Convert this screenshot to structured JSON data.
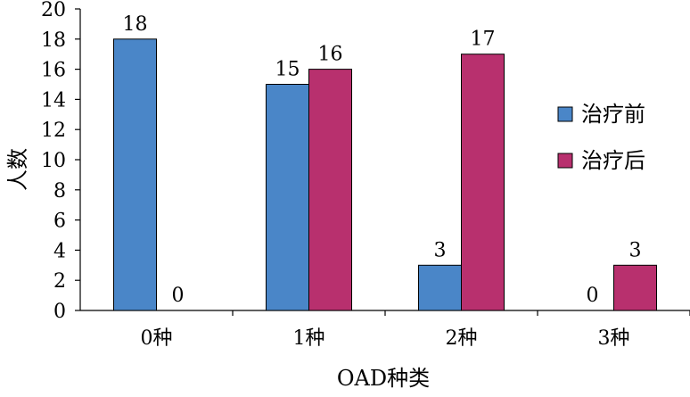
{
  "chart_data": {
    "type": "bar",
    "title": "",
    "xlabel": "OAD种类",
    "ylabel": "人数",
    "categories": [
      "0种",
      "1种",
      "2种",
      "3种"
    ],
    "series": [
      {
        "name": "治疗前",
        "values": [
          18,
          15,
          3,
          0
        ],
        "color": "#4a86c8"
      },
      {
        "name": "治疗后",
        "values": [
          0,
          16,
          17,
          3
        ],
        "color": "#b8306e"
      }
    ],
    "ylim": [
      0,
      20
    ],
    "yticks": [
      0,
      2,
      4,
      6,
      8,
      10,
      12,
      14,
      16,
      18,
      20
    ],
    "data_labels": true,
    "grid": false,
    "legend_position": "right"
  }
}
